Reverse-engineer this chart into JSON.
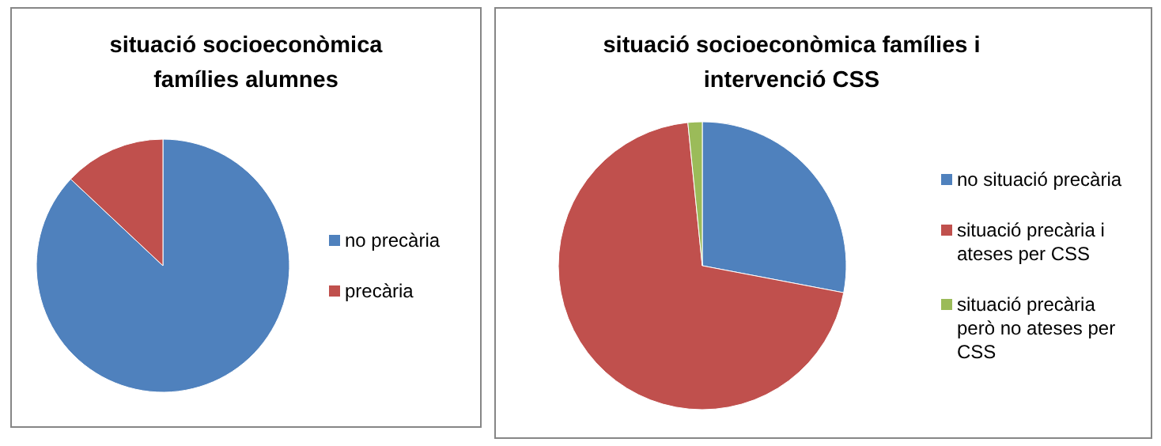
{
  "chart_data": [
    {
      "type": "pie",
      "title": "situació socioeconòmica famílies alumnes",
      "categories": [
        "no precària",
        "precària"
      ],
      "values": [
        87,
        13
      ],
      "colors": [
        "#4f81bd",
        "#c0504d"
      ],
      "legend": "right"
    },
    {
      "type": "pie",
      "title": "situació socioeconòmica famílies i intervenció CSS",
      "categories": [
        "no situació precària",
        "situació precària i ateses per CSS",
        "situació precària però no ateses per CSS"
      ],
      "values": [
        28,
        70.4,
        1.6
      ],
      "colors": [
        "#4f81bd",
        "#c0504d",
        "#9bbb59"
      ],
      "legend": "right"
    }
  ]
}
